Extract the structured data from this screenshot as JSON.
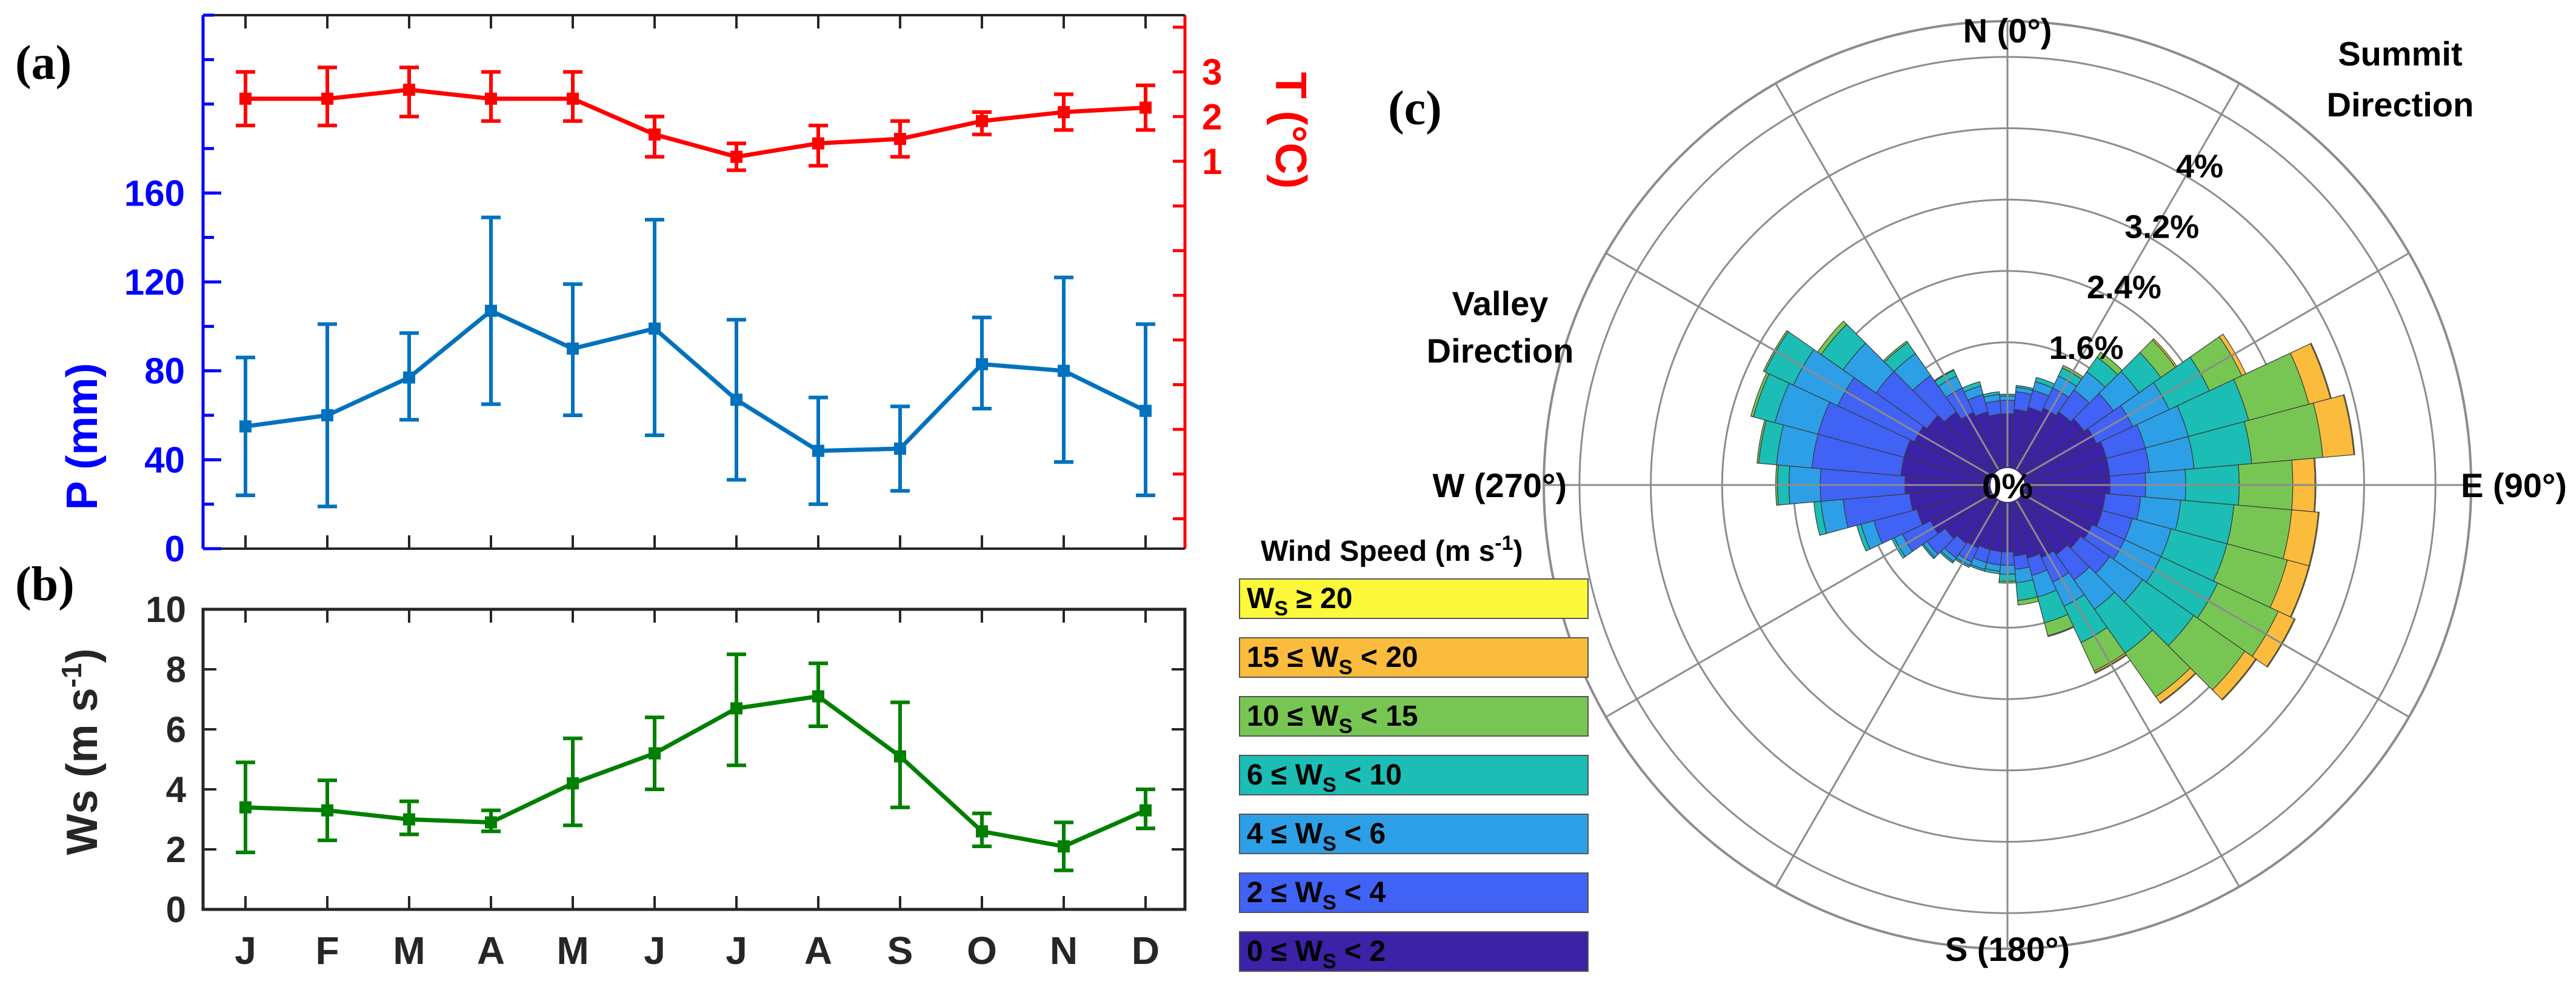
{
  "panels": {
    "a": "(a)",
    "b": "(b)",
    "c": "(c)"
  },
  "chart_data": [
    {
      "type": "line",
      "panel": "(a)",
      "dual_axis": true,
      "categories": [
        "J",
        "F",
        "M",
        "A",
        "M",
        "J",
        "J",
        "A",
        "S",
        "O",
        "N",
        "D"
      ],
      "series": [
        {
          "axis": "left",
          "color": "#0072bd",
          "values": [
            55,
            60,
            77,
            107,
            90,
            99,
            67,
            44,
            45,
            83,
            80,
            62
          ],
          "error_low": [
            24,
            19,
            58,
            65,
            60,
            51,
            31,
            20,
            26,
            63,
            39,
            24
          ],
          "error_high": [
            86,
            101,
            97,
            149,
            119,
            148,
            103,
            68,
            64,
            104,
            122,
            101
          ]
        },
        {
          "axis": "right",
          "color": "#ff0000",
          "values": [
            2.4,
            2.4,
            2.6,
            2.4,
            2.4,
            1.6,
            1.1,
            1.4,
            1.5,
            1.9,
            2.1,
            2.2
          ],
          "error_low": [
            1.8,
            1.8,
            2.0,
            1.9,
            1.9,
            1.1,
            0.8,
            0.9,
            1.1,
            1.6,
            1.7,
            1.7
          ],
          "error_high": [
            3.0,
            3.1,
            3.1,
            3.0,
            3.0,
            2.0,
            1.4,
            1.8,
            1.9,
            2.1,
            2.5,
            2.7
          ]
        }
      ],
      "ylabel_left": "P (mm)",
      "ylabel_right": "T (°C)",
      "ylim_left": [
        0,
        240
      ],
      "yticks_left": [
        "0",
        "40",
        "80",
        "120",
        "160"
      ],
      "ylim_right": [
        -7.67,
        4.27
      ],
      "yticks_right": [
        "1",
        "2",
        "3"
      ],
      "left_axis_color": "#0000ff",
      "right_axis_color": "#ff0000"
    },
    {
      "type": "line",
      "panel": "(b)",
      "categories": [
        "J",
        "F",
        "M",
        "A",
        "M",
        "J",
        "J",
        "A",
        "S",
        "O",
        "N",
        "D"
      ],
      "series": [
        {
          "color": "#007f00",
          "values": [
            3.4,
            3.3,
            3.0,
            2.9,
            4.2,
            5.2,
            6.7,
            7.1,
            5.1,
            2.6,
            2.1,
            3.3
          ],
          "error_low": [
            1.9,
            2.3,
            2.5,
            2.6,
            2.8,
            4.0,
            4.8,
            6.1,
            3.4,
            2.1,
            1.3,
            2.7
          ],
          "error_high": [
            4.9,
            4.3,
            3.6,
            3.3,
            5.7,
            6.4,
            8.5,
            8.2,
            6.9,
            3.2,
            2.9,
            4.0
          ]
        }
      ],
      "ylabel": "Ws (m s",
      "ylabel_sup": "-1",
      "ylabel_close": ")",
      "ylim": [
        0,
        10
      ],
      "yticks": [
        "0",
        "2",
        "4",
        "6",
        "8",
        "10"
      ]
    },
    {
      "type": "wind-rose",
      "panel": "(c)",
      "direction_labels": {
        "north": "N (0°)",
        "east": "E (90°)",
        "south": "S (180°)",
        "west": "W (270°)"
      },
      "annotations": {
        "summit_line1": "Summit",
        "summit_line2": "Direction",
        "valley_line1": "Valley",
        "valley_line2": "Direction"
      },
      "center_label": "0%",
      "ring_values": [
        1.6,
        2.4,
        3.2,
        4.0,
        4.8
      ],
      "ring_labels": [
        "1.6%",
        "2.4%",
        "3.2%",
        "4%"
      ],
      "rmax": 5.2,
      "sector_count": 36,
      "bins": [
        "0 ≤ WS < 2",
        "2 ≤ WS < 4",
        "4 ≤ WS < 6",
        "6 ≤ WS < 10",
        "10 ≤ WS < 15",
        "15 ≤ WS < 20",
        "WS ≥ 20"
      ],
      "bin_colors": [
        "#3b22a6",
        "#4062f5",
        "#2d9fe6",
        "#1bbdb5",
        "#77c653",
        "#fbbb3c",
        "#fbf93a"
      ],
      "directions_deg": [
        0,
        10,
        20,
        30,
        40,
        50,
        60,
        70,
        80,
        90,
        100,
        110,
        120,
        130,
        140,
        150,
        160,
        170,
        180,
        190,
        200,
        210,
        220,
        230,
        240,
        250,
        260,
        270,
        280,
        290,
        300,
        310,
        320,
        330,
        340,
        350
      ],
      "cumulative_percent": [
        [
          0.8,
          0.95,
          1.0,
          1.02,
          1.02,
          1.02,
          1.02
        ],
        [
          0.85,
          1.05,
          1.1,
          1.12,
          1.12,
          1.12,
          1.12
        ],
        [
          0.9,
          1.1,
          1.2,
          1.25,
          1.25,
          1.25,
          1.25
        ],
        [
          0.95,
          1.2,
          1.35,
          1.45,
          1.48,
          1.48,
          1.48
        ],
        [
          1.0,
          1.3,
          1.55,
          1.75,
          1.82,
          1.82,
          1.82
        ],
        [
          1.05,
          1.45,
          1.8,
          2.1,
          2.3,
          2.32,
          2.32
        ],
        [
          1.1,
          1.55,
          2.0,
          2.5,
          2.9,
          2.95,
          2.95
        ],
        [
          1.15,
          1.6,
          2.1,
          2.8,
          3.5,
          3.75,
          3.76
        ],
        [
          1.15,
          1.6,
          2.1,
          2.75,
          3.55,
          3.9,
          3.91
        ],
        [
          1.15,
          1.55,
          2.0,
          2.6,
          3.2,
          3.45,
          3.46
        ],
        [
          1.1,
          1.5,
          1.95,
          2.55,
          3.2,
          3.5,
          3.51
        ],
        [
          1.1,
          1.45,
          1.9,
          2.55,
          3.25,
          3.5,
          3.51
        ],
        [
          1.05,
          1.45,
          1.9,
          2.6,
          3.35,
          3.55,
          3.56
        ],
        [
          1.0,
          1.4,
          1.85,
          2.55,
          3.25,
          3.4,
          3.41
        ],
        [
          0.95,
          1.3,
          1.7,
          2.3,
          2.9,
          2.98,
          2.99
        ],
        [
          0.9,
          1.2,
          1.5,
          1.95,
          2.3,
          2.32,
          2.33
        ],
        [
          0.85,
          1.05,
          1.3,
          1.6,
          1.75,
          1.76,
          1.76
        ],
        [
          0.8,
          0.95,
          1.1,
          1.3,
          1.35,
          1.35,
          1.35
        ],
        [
          0.75,
          0.9,
          1.0,
          1.08,
          1.1,
          1.1,
          1.1
        ],
        [
          0.75,
          0.9,
          0.97,
          1.0,
          1.0,
          1.0,
          1.0
        ],
        [
          0.75,
          0.9,
          0.98,
          1.0,
          1.0,
          1.0,
          1.0
        ],
        [
          0.78,
          0.95,
          1.0,
          1.02,
          1.02,
          1.02,
          1.02
        ],
        [
          0.8,
          1.0,
          1.05,
          1.07,
          1.07,
          1.07,
          1.07
        ],
        [
          0.85,
          1.1,
          1.15,
          1.17,
          1.17,
          1.17,
          1.17
        ],
        [
          0.95,
          1.3,
          1.4,
          1.43,
          1.43,
          1.43,
          1.43
        ],
        [
          1.05,
          1.55,
          1.7,
          1.75,
          1.75,
          1.75,
          1.75
        ],
        [
          1.1,
          1.85,
          2.1,
          2.18,
          2.18,
          2.18,
          2.18
        ],
        [
          1.15,
          2.1,
          2.45,
          2.58,
          2.6,
          2.6,
          2.6
        ],
        [
          1.2,
          2.2,
          2.6,
          2.8,
          2.82,
          2.82,
          2.82
        ],
        [
          1.2,
          2.2,
          2.7,
          2.95,
          2.98,
          2.98,
          2.98
        ],
        [
          1.15,
          2.1,
          2.65,
          3.0,
          3.02,
          3.02,
          3.02
        ],
        [
          1.1,
          1.8,
          2.25,
          2.55,
          2.6,
          2.6,
          2.6
        ],
        [
          1.0,
          1.5,
          1.8,
          1.95,
          1.97,
          1.97,
          1.97
        ],
        [
          0.9,
          1.2,
          1.35,
          1.42,
          1.43,
          1.43,
          1.43
        ],
        [
          0.85,
          1.05,
          1.15,
          1.2,
          1.2,
          1.2,
          1.2
        ],
        [
          0.8,
          0.95,
          1.02,
          1.05,
          1.05,
          1.05,
          1.05
        ]
      ],
      "legend": {
        "title": "Wind Speed (m s",
        "title_sup": "-1",
        "title_close": ")",
        "items": [
          {
            "pre": "W",
            "sub": "S",
            "post": " ≥ 20",
            "color": "#fbf93a"
          },
          {
            "pre": "15 ≤ W",
            "sub": "S",
            "post": " < 20",
            "color": "#fbbb3c"
          },
          {
            "pre": "10 ≤ W",
            "sub": "S",
            "post": " < 15",
            "color": "#77c653"
          },
          {
            "pre": "6 ≤ W",
            "sub": "S",
            "post": " < 10",
            "color": "#1bbdb5"
          },
          {
            "pre": "4 ≤ W",
            "sub": "S",
            "post": " < 6",
            "color": "#2d9fe6"
          },
          {
            "pre": "2 ≤ W",
            "sub": "S",
            "post": " < 4",
            "color": "#4062f5"
          },
          {
            "pre": "0 ≤ W",
            "sub": "S",
            "post": " < 2",
            "color": "#3b22a6"
          }
        ]
      }
    }
  ]
}
